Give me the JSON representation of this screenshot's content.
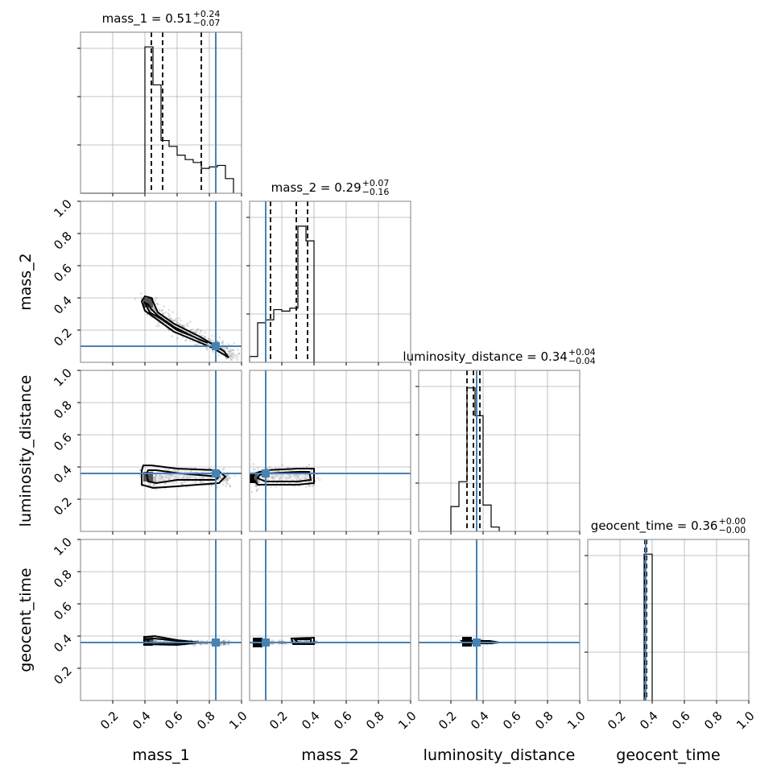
{
  "chart_data": {
    "type": "corner",
    "parameters": [
      "mass_1",
      "mass_2",
      "luminosity_distance",
      "geocent_time"
    ],
    "axis_range": [
      0,
      1
    ],
    "tick_labels": [
      "0.2",
      "0.4",
      "0.6",
      "0.8",
      "1.0"
    ],
    "ticks": [
      0.2,
      0.4,
      0.6,
      0.8,
      1.0
    ],
    "grid": true,
    "truth_values": [
      0.84,
      0.1,
      0.36,
      0.36
    ],
    "colors": {
      "truth": "#4682b4",
      "hist": "#000000",
      "grid": "#b0b0b0",
      "frame": "#808080",
      "density_dark": "#000000",
      "density_light": "#e6e6e6"
    },
    "titles": [
      {
        "param": "mass_1",
        "text": "mass_1 = 0.51",
        "plus": "+0.24",
        "minus": "−0.07"
      },
      {
        "param": "mass_2",
        "text": "mass_2 = 0.29",
        "plus": "+0.07",
        "minus": "−0.16"
      },
      {
        "param": "luminosity_distance",
        "text": "luminosity_distance = 0.34",
        "plus": "+0.04",
        "minus": "−0.04"
      },
      {
        "param": "geocent_time",
        "text": "geocent_time = 0.36",
        "plus": "+0.00",
        "minus": "−0.00"
      }
    ],
    "histograms": [
      {
        "param": "mass_1",
        "bin_edges": [
          0,
          0.4,
          0.45,
          0.5,
          0.55,
          0.6,
          0.65,
          0.7,
          0.75,
          0.8,
          0.85,
          0.9,
          0.95
        ],
        "counts": [
          0,
          1.0,
          0.74,
          0.36,
          0.32,
          0.26,
          0.23,
          0.21,
          0.17,
          0.18,
          0.19,
          0.1
        ],
        "quantiles": [
          0.44,
          0.51,
          0.75
        ]
      },
      {
        "param": "mass_2",
        "bin_edges": [
          0,
          0.05,
          0.1,
          0.15,
          0.2,
          0.25,
          0.3,
          0.35,
          0.4
        ],
        "counts": [
          0.04,
          0.27,
          0.29,
          0.36,
          0.35,
          0.37,
          0.93,
          0.83
        ],
        "quantiles": [
          0.13,
          0.29,
          0.36
        ]
      },
      {
        "param": "luminosity_distance",
        "bin_edges": [
          0.2,
          0.25,
          0.3,
          0.35,
          0.4,
          0.45,
          0.5
        ],
        "counts": [
          0.17,
          0.34,
          0.98,
          0.79,
          0.18,
          0.03
        ],
        "quantiles": [
          0.3,
          0.34,
          0.38
        ]
      },
      {
        "param": "geocent_time",
        "bin_edges": [
          0.35,
          0.4
        ],
        "counts": [
          1.0
        ],
        "quantiles": [
          0.355,
          0.36,
          0.365
        ]
      }
    ],
    "pair_densities": [
      {
        "x": "mass_1",
        "y": "mass_2",
        "points": [
          [
            0.42,
            0.37
          ],
          [
            0.45,
            0.33
          ],
          [
            0.5,
            0.28
          ],
          [
            0.55,
            0.25
          ],
          [
            0.6,
            0.22
          ],
          [
            0.65,
            0.19
          ],
          [
            0.7,
            0.17
          ],
          [
            0.76,
            0.14
          ],
          [
            0.82,
            0.11
          ],
          [
            0.88,
            0.08
          ],
          [
            0.93,
            0.04
          ]
        ],
        "spread": [
          0.03,
          0.025
        ],
        "inner_contour": [
          [
            0.4,
            0.37
          ],
          [
            0.43,
            0.31
          ],
          [
            0.5,
            0.27
          ],
          [
            0.6,
            0.2
          ],
          [
            0.7,
            0.16
          ],
          [
            0.79,
            0.12
          ],
          [
            0.74,
            0.14
          ],
          [
            0.58,
            0.22
          ],
          [
            0.48,
            0.29
          ],
          [
            0.44,
            0.33
          ],
          [
            0.42,
            0.36
          ]
        ],
        "outer_contour": [
          [
            0.38,
            0.38
          ],
          [
            0.4,
            0.32
          ],
          [
            0.47,
            0.27
          ],
          [
            0.58,
            0.19
          ],
          [
            0.7,
            0.14
          ],
          [
            0.82,
            0.09
          ],
          [
            0.92,
            0.03
          ],
          [
            0.89,
            0.07
          ],
          [
            0.74,
            0.16
          ],
          [
            0.58,
            0.24
          ],
          [
            0.48,
            0.31
          ],
          [
            0.44,
            0.4
          ],
          [
            0.4,
            0.41
          ]
        ]
      },
      {
        "x": "mass_1",
        "y": "luminosity_distance",
        "points": [
          [
            0.42,
            0.34
          ],
          [
            0.45,
            0.32
          ],
          [
            0.5,
            0.33
          ],
          [
            0.55,
            0.35
          ],
          [
            0.6,
            0.34
          ],
          [
            0.65,
            0.33
          ],
          [
            0.7,
            0.35
          ],
          [
            0.75,
            0.34
          ],
          [
            0.8,
            0.33
          ],
          [
            0.85,
            0.34
          ],
          [
            0.9,
            0.33
          ]
        ],
        "spread": [
          0.03,
          0.03
        ],
        "inner_contour": [
          [
            0.41,
            0.36
          ],
          [
            0.42,
            0.31
          ],
          [
            0.47,
            0.3
          ],
          [
            0.6,
            0.32
          ],
          [
            0.84,
            0.32
          ],
          [
            0.86,
            0.34
          ],
          [
            0.62,
            0.36
          ],
          [
            0.47,
            0.38
          ],
          [
            0.42,
            0.38
          ]
        ],
        "outer_contour": [
          [
            0.38,
            0.38
          ],
          [
            0.38,
            0.29
          ],
          [
            0.45,
            0.27
          ],
          [
            0.6,
            0.28
          ],
          [
            0.86,
            0.3
          ],
          [
            0.9,
            0.34
          ],
          [
            0.85,
            0.38
          ],
          [
            0.6,
            0.39
          ],
          [
            0.44,
            0.41
          ],
          [
            0.39,
            0.41
          ]
        ]
      },
      {
        "x": "mass_2",
        "y": "luminosity_distance",
        "points": [
          [
            0.02,
            0.33
          ],
          [
            0.05,
            0.32
          ],
          [
            0.1,
            0.34
          ],
          [
            0.15,
            0.34
          ],
          [
            0.2,
            0.35
          ],
          [
            0.25,
            0.34
          ],
          [
            0.3,
            0.33
          ],
          [
            0.35,
            0.34
          ],
          [
            0.38,
            0.33
          ]
        ],
        "spread": [
          0.02,
          0.03
        ],
        "inner_contour": [
          [
            0.05,
            0.33
          ],
          [
            0.1,
            0.31
          ],
          [
            0.3,
            0.31
          ],
          [
            0.38,
            0.32
          ],
          [
            0.37,
            0.37
          ],
          [
            0.3,
            0.37
          ],
          [
            0.1,
            0.36
          ],
          [
            0.06,
            0.35
          ]
        ],
        "outer_contour": [
          [
            0.02,
            0.33
          ],
          [
            0.05,
            0.29
          ],
          [
            0.3,
            0.29
          ],
          [
            0.4,
            0.3
          ],
          [
            0.4,
            0.39
          ],
          [
            0.3,
            0.39
          ],
          [
            0.1,
            0.38
          ],
          [
            0.03,
            0.36
          ]
        ]
      },
      {
        "x": "mass_1",
        "y": "geocent_time",
        "points": [
          [
            0.42,
            0.37
          ],
          [
            0.46,
            0.37
          ],
          [
            0.52,
            0.36
          ],
          [
            0.58,
            0.36
          ],
          [
            0.64,
            0.36
          ],
          [
            0.7,
            0.36
          ],
          [
            0.76,
            0.36
          ],
          [
            0.84,
            0.36
          ],
          [
            0.9,
            0.36
          ]
        ],
        "spread": [
          0.02,
          0.008
        ],
        "inner_contour": [
          [
            0.41,
            0.38
          ],
          [
            0.43,
            0.36
          ],
          [
            0.6,
            0.355
          ],
          [
            0.72,
            0.36
          ],
          [
            0.6,
            0.37
          ],
          [
            0.46,
            0.385
          ]
        ],
        "outer_contour": [
          [
            0.4,
            0.395
          ],
          [
            0.4,
            0.35
          ],
          [
            0.6,
            0.345
          ],
          [
            0.74,
            0.36
          ],
          [
            0.6,
            0.375
          ],
          [
            0.46,
            0.4
          ]
        ]
      },
      {
        "x": "mass_2",
        "y": "geocent_time",
        "points": [
          [
            0.05,
            0.36
          ],
          [
            0.12,
            0.36
          ],
          [
            0.2,
            0.36
          ],
          [
            0.28,
            0.37
          ],
          [
            0.34,
            0.37
          ],
          [
            0.38,
            0.365
          ]
        ],
        "spread": [
          0.02,
          0.006
        ],
        "inner_contour": [
          [
            0.28,
            0.38
          ],
          [
            0.3,
            0.36
          ],
          [
            0.38,
            0.36
          ],
          [
            0.38,
            0.38
          ]
        ],
        "outer_contour": [
          [
            0.26,
            0.385
          ],
          [
            0.27,
            0.35
          ],
          [
            0.4,
            0.35
          ],
          [
            0.4,
            0.39
          ]
        ]
      },
      {
        "x": "luminosity_distance",
        "y": "geocent_time",
        "points": [
          [
            0.3,
            0.365
          ],
          [
            0.34,
            0.365
          ],
          [
            0.38,
            0.365
          ],
          [
            0.42,
            0.36
          ]
        ],
        "spread": [
          0.02,
          0.006
        ],
        "inner_contour": [
          [
            0.31,
            0.37
          ],
          [
            0.32,
            0.355
          ],
          [
            0.4,
            0.355
          ],
          [
            0.4,
            0.37
          ]
        ],
        "outer_contour": [
          [
            0.27,
            0.37
          ],
          [
            0.29,
            0.355
          ],
          [
            0.45,
            0.355
          ],
          [
            0.5,
            0.36
          ],
          [
            0.44,
            0.37
          ]
        ]
      }
    ]
  }
}
